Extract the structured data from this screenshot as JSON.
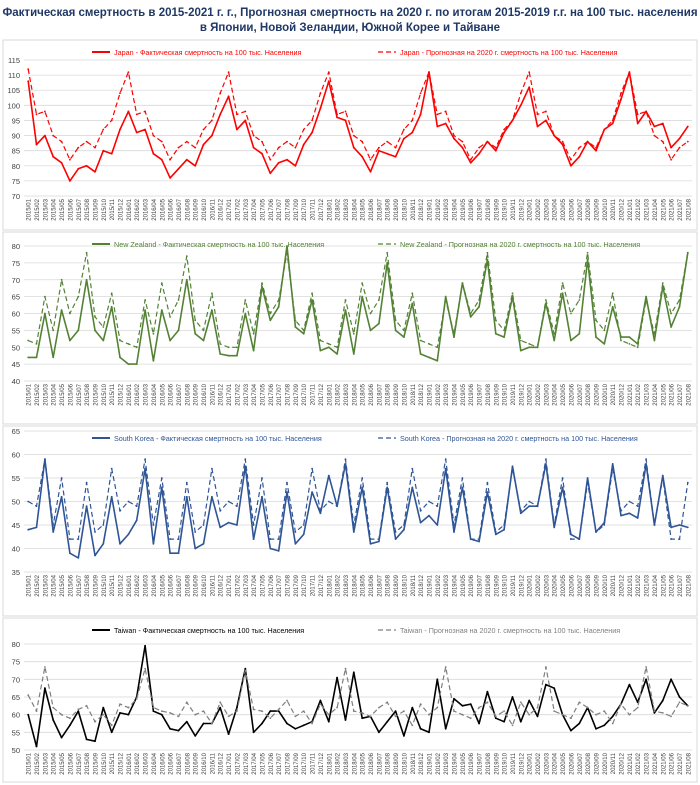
{
  "page": {
    "title_line1": "Фактическая смертность в 2015-2021 г. г., Прогнозная смертность на 2020 г. по итогам 2015-2019 г.г. на 100 тыс. населения",
    "title_line2": "в Японии, Новой Зеландии, Южной Корее и Тайване"
  },
  "chart_data": [
    {
      "type": "line",
      "country": "Japan",
      "color": "#ff0000",
      "ylim": [
        70,
        115
      ],
      "yticks": [
        70,
        75,
        80,
        85,
        90,
        95,
        100,
        105,
        110,
        115
      ],
      "x": [
        "2015/01",
        "2015/02",
        "2015/03",
        "2015/04",
        "2015/05",
        "2015/06",
        "2015/07",
        "2015/08",
        "2015/09",
        "2015/10",
        "2015/11",
        "2015/12",
        "2016/01",
        "2016/02",
        "2016/03",
        "2016/04",
        "2016/05",
        "2016/06",
        "2016/07",
        "2016/08",
        "2016/09",
        "2016/10",
        "2016/11",
        "2016/12",
        "2017/01",
        "2017/02",
        "2017/03",
        "2017/04",
        "2017/05",
        "2017/06",
        "2017/07",
        "2017/08",
        "2017/09",
        "2017/10",
        "2017/11",
        "2017/12",
        "2018/01",
        "2018/02",
        "2018/03",
        "2018/04",
        "2018/05",
        "2018/06",
        "2018/07",
        "2018/08",
        "2018/09",
        "2018/10",
        "2018/11",
        "2018/12",
        "2019/01",
        "2019/02",
        "2019/03",
        "2019/04",
        "2019/05",
        "2019/06",
        "2019/07",
        "2019/08",
        "2019/09",
        "2019/10",
        "2019/11",
        "2019/12",
        "2020/01",
        "2020/02",
        "2020/03",
        "2020/04",
        "2020/05",
        "2020/06",
        "2020/07",
        "2020/08",
        "2020/09",
        "2020/10",
        "2020/11",
        "2020/12",
        "2021/01",
        "2021/02",
        "2021/03",
        "2021/04",
        "2021/05",
        "2021/06",
        "2021/07",
        "2021/08"
      ],
      "series": [
        {
          "name": "Japan - Фактическая смертность на 100 тыс. Населения",
          "style": "solid",
          "values": [
            108,
            87,
            90,
            83,
            81,
            75,
            79,
            80,
            78,
            85,
            84,
            92,
            98,
            91,
            92,
            84,
            82,
            76,
            79,
            82,
            80,
            87,
            90,
            97,
            103,
            92,
            95,
            86,
            84,
            77.5,
            81,
            82,
            80,
            87,
            91,
            99,
            108,
            96,
            95,
            86,
            83,
            78,
            85,
            84,
            83,
            89,
            91,
            97,
            111,
            93,
            94,
            89,
            86,
            81,
            84,
            88,
            85,
            91,
            95,
            100,
            106,
            93,
            95,
            90,
            87,
            80,
            83,
            88,
            85,
            92,
            94,
            102,
            111,
            94,
            98,
            93,
            94,
            86,
            89,
            93
          ]
        },
        {
          "name": "Japan - Прогнозная на 2020 г. смертность на 100 тыс. Населения",
          "style": "dashed",
          "values": [
            112,
            97,
            98,
            90,
            88,
            82,
            86,
            88,
            86,
            92,
            95,
            104,
            111,
            97,
            98,
            90,
            88,
            82,
            86,
            88,
            86,
            92,
            95,
            104,
            111,
            97,
            98,
            90,
            88,
            82,
            86,
            88,
            86,
            92,
            95,
            104,
            111,
            97,
            98,
            90,
            88,
            82,
            86,
            88,
            86,
            92,
            95,
            104,
            111,
            97,
            98,
            90,
            88,
            82,
            86,
            88,
            86,
            92,
            95,
            104,
            111,
            97,
            98,
            90,
            88,
            82,
            86,
            88,
            86,
            92,
            95,
            104,
            111,
            97,
            98,
            90,
            88,
            82,
            86,
            88
          ]
        }
      ]
    },
    {
      "type": "line",
      "country": "New Zealand",
      "color": "#548235",
      "ylim": [
        40,
        80
      ],
      "yticks": [
        40,
        45,
        50,
        55,
        60,
        65,
        70,
        75,
        80
      ],
      "x": [
        "2015/01",
        "2015/02",
        "2015/03",
        "2015/04",
        "2015/05",
        "2015/06",
        "2015/07",
        "2015/08",
        "2015/09",
        "2015/10",
        "2015/11",
        "2015/12",
        "2016/01",
        "2016/02",
        "2016/03",
        "2016/04",
        "2016/05",
        "2016/06",
        "2016/07",
        "2016/08",
        "2016/09",
        "2016/10",
        "2016/11",
        "2016/12",
        "2017/01",
        "2017/02",
        "2017/03",
        "2017/04",
        "2017/05",
        "2017/06",
        "2017/07",
        "2017/08",
        "2017/09",
        "2017/10",
        "2017/11",
        "2017/12",
        "2018/01",
        "2018/02",
        "2018/03",
        "2018/04",
        "2018/05",
        "2018/06",
        "2018/07",
        "2018/08",
        "2018/09",
        "2018/10",
        "2018/11",
        "2018/12",
        "2019/01",
        "2019/02",
        "2019/03",
        "2019/04",
        "2019/05",
        "2019/06",
        "2019/07",
        "2019/08",
        "2019/09",
        "2019/10",
        "2019/11",
        "2019/12",
        "2020/01",
        "2020/02",
        "2020/03",
        "2020/04",
        "2020/05",
        "2020/06",
        "2020/07",
        "2020/08",
        "2020/09",
        "2020/10",
        "2020/11",
        "2020/12",
        "2021/01",
        "2021/02",
        "2021/03",
        "2021/04",
        "2021/05",
        "2021/06",
        "2021/07",
        "2021/08"
      ],
      "series": [
        {
          "name": "New Zealand - Фактическая смертность на 100 тыс. Населения",
          "style": "solid",
          "values": [
            47,
            47,
            60,
            47,
            61,
            52,
            55,
            70,
            55,
            52,
            62,
            47,
            45,
            45,
            61,
            46,
            61,
            52,
            55,
            70,
            54,
            52,
            61,
            48,
            47.5,
            47.5,
            60,
            49,
            68,
            58,
            62,
            80,
            56,
            54,
            64,
            49,
            50,
            48,
            61,
            48,
            65,
            55,
            57,
            75,
            55,
            53,
            63,
            48,
            47,
            46,
            65,
            53,
            69,
            59,
            62,
            76,
            54,
            53,
            65,
            49,
            50,
            50,
            63,
            52,
            66,
            52,
            54,
            76,
            53,
            51,
            62,
            53,
            53,
            51,
            65,
            52,
            68,
            56,
            62,
            78
          ]
        },
        {
          "name": "New Zealand - Прогнозная на 2020 г. смертность на 100 тыс. Населения",
          "style": "dashed",
          "values": [
            52,
            51,
            65,
            55,
            70,
            60,
            65,
            78,
            59,
            56,
            66,
            52,
            51,
            50,
            64,
            54,
            69,
            59,
            64,
            77,
            58,
            55,
            66,
            51,
            50,
            50,
            64,
            54,
            69,
            60,
            64,
            78,
            58,
            55,
            66,
            52,
            51,
            50,
            64,
            54,
            69,
            60,
            64,
            78,
            58,
            55,
            66,
            52,
            51,
            50,
            64,
            54,
            69,
            60,
            64,
            78,
            58,
            55,
            66,
            52,
            51,
            50,
            64,
            54,
            69,
            60,
            64,
            78,
            58,
            55,
            66,
            52,
            51,
            50,
            64,
            54,
            69,
            60,
            64,
            78
          ]
        }
      ]
    },
    {
      "type": "line",
      "country": "South Korea",
      "color": "#2f5597",
      "ylim": [
        35,
        65
      ],
      "yticks": [
        35,
        40,
        45,
        50,
        55,
        60,
        65
      ],
      "x": [
        "2015/01",
        "2015/02",
        "2015/03",
        "2015/04",
        "2015/05",
        "2015/06",
        "2015/07",
        "2015/08",
        "2015/09",
        "2015/10",
        "2015/11",
        "2015/12",
        "2016/01",
        "2016/02",
        "2016/03",
        "2016/04",
        "2016/05",
        "2016/06",
        "2016/07",
        "2016/08",
        "2016/09",
        "2016/10",
        "2016/11",
        "2016/12",
        "2017/01",
        "2017/02",
        "2017/03",
        "2017/04",
        "2017/05",
        "2017/06",
        "2017/07",
        "2017/08",
        "2017/09",
        "2017/10",
        "2017/11",
        "2017/12",
        "2018/01",
        "2018/02",
        "2018/03",
        "2018/04",
        "2018/05",
        "2018/06",
        "2018/07",
        "2018/08",
        "2018/09",
        "2018/10",
        "2018/11",
        "2018/12",
        "2019/01",
        "2019/02",
        "2019/03",
        "2019/04",
        "2019/05",
        "2019/06",
        "2019/07",
        "2019/08",
        "2019/09",
        "2019/10",
        "2019/11",
        "2019/12",
        "2020/01",
        "2020/02",
        "2020/03",
        "2020/04",
        "2020/05",
        "2020/06",
        "2020/07",
        "2020/08",
        "2020/09",
        "2020/10",
        "2020/11",
        "2020/12",
        "2021/01",
        "2021/02",
        "2021/03",
        "2021/04",
        "2021/05",
        "2021/06",
        "2021/07",
        "2021/08"
      ],
      "series": [
        {
          "name": "South Korea - Фактическая смертность на 100 тыс. Населения",
          "style": "solid",
          "values": [
            44,
            44.5,
            59,
            43.5,
            51,
            39,
            38,
            49,
            38.5,
            41,
            51,
            41,
            43,
            46,
            57,
            41,
            53,
            39,
            39,
            51,
            40,
            41,
            51,
            44.5,
            45.5,
            45,
            57.5,
            42,
            51,
            40,
            39.5,
            52,
            41,
            43,
            52,
            47.5,
            55.5,
            49,
            58,
            43.5,
            53,
            41,
            41.5,
            53,
            42,
            44,
            53,
            45.5,
            47,
            45,
            57,
            43.5,
            53,
            42,
            41.5,
            52,
            43,
            44,
            57.5,
            47.5,
            49,
            49,
            58,
            44.5,
            53,
            43,
            42,
            55,
            43.5,
            45.5,
            58,
            47,
            47.5,
            46.5,
            58,
            45,
            55.5,
            44.5,
            45,
            44.5
          ]
        },
        {
          "name": "South Korea - Прогнозная на 2020 г. смертность на 100 тыс. Населения",
          "style": "dashed",
          "values": [
            50,
            49,
            59,
            45,
            55,
            42,
            42,
            54,
            43.5,
            45,
            57,
            48,
            50,
            49,
            59,
            45,
            55,
            42,
            42,
            54,
            43.5,
            45,
            57,
            48,
            50,
            49,
            59,
            45,
            55,
            42,
            42,
            54,
            43.5,
            45,
            57,
            48,
            50,
            49,
            59,
            45,
            55,
            42,
            42,
            54,
            43.5,
            45,
            57,
            48,
            50,
            49,
            59,
            45,
            55,
            42,
            42,
            54,
            43.5,
            45,
            57,
            48,
            50,
            49,
            59,
            45,
            55,
            42,
            42,
            54,
            43.5,
            45,
            57,
            48,
            50,
            49,
            59,
            45,
            55,
            42,
            42,
            54
          ]
        }
      ]
    },
    {
      "type": "line",
      "country": "Taiwan",
      "color": "#000000",
      "predicted_color": "#7f7f7f",
      "ylim": [
        50,
        80
      ],
      "yticks": [
        50,
        55,
        60,
        65,
        70,
        75,
        80
      ],
      "x": [
        "2015/01",
        "2015/02",
        "2015/03",
        "2015/04",
        "2015/05",
        "2015/06",
        "2015/07",
        "2015/08",
        "2015/09",
        "2015/10",
        "2015/11",
        "2015/12",
        "2016/01",
        "2016/02",
        "2016/03",
        "2016/04",
        "2016/05",
        "2016/06",
        "2016/07",
        "2016/08",
        "2016/09",
        "2016/10",
        "2016/11",
        "2016/12",
        "2017/01",
        "2017/02",
        "2017/03",
        "2017/04",
        "2017/05",
        "2017/06",
        "2017/07",
        "2017/08",
        "2017/09",
        "2017/10",
        "2017/11",
        "2017/12",
        "2018/01",
        "2018/02",
        "2018/03",
        "2018/04",
        "2018/05",
        "2018/06",
        "2018/07",
        "2018/08",
        "2018/09",
        "2018/10",
        "2018/11",
        "2018/12",
        "2019/01",
        "2019/02",
        "2019/03",
        "2019/04",
        "2019/05",
        "2019/06",
        "2019/07",
        "2019/08",
        "2019/09",
        "2019/10",
        "2019/11",
        "2019/12",
        "2020/01",
        "2020/02",
        "2020/03",
        "2020/04",
        "2020/05",
        "2020/06",
        "2020/07",
        "2020/08",
        "2020/09",
        "2020/10",
        "2020/11",
        "2020/12",
        "2021/01",
        "2021/02",
        "2021/03",
        "2021/04",
        "2021/05",
        "2021/06",
        "2021/07",
        "2021/08"
      ],
      "series": [
        {
          "name": "Taiwan - Фактическая смертность на 100 тыс. Населения",
          "style": "solid",
          "values": [
            60,
            51,
            67.5,
            58.5,
            53.5,
            57,
            61,
            53,
            52.5,
            62,
            55,
            60.5,
            60,
            65,
            79.5,
            61,
            60,
            56,
            55.5,
            58,
            54,
            57.5,
            57.5,
            62,
            54.5,
            62,
            73,
            55,
            57.5,
            61,
            61,
            57.5,
            56,
            57,
            58,
            64,
            58,
            70.5,
            58.5,
            72,
            59,
            59.5,
            55,
            58,
            61,
            54,
            62,
            56,
            55,
            70,
            56,
            64.5,
            62.5,
            63,
            57.5,
            66.5,
            59,
            58,
            65,
            58,
            64,
            59.5,
            68.5,
            67.5,
            60,
            55.5,
            57.5,
            62,
            56,
            57,
            59.5,
            63,
            68.5,
            63.5,
            70,
            60.5,
            64,
            70,
            65,
            62.5
          ]
        },
        {
          "name": "Taiwan - Прогнозная на 2020 г. смертность на 100 тыс. Населения",
          "style": "dashed",
          "values": [
            65.5,
            61,
            73.5,
            62,
            60,
            59,
            61.5,
            62.5,
            58,
            60,
            57,
            63,
            62,
            64.5,
            73,
            62,
            61,
            60.5,
            59.5,
            63.5,
            60,
            61,
            57.5,
            63.5,
            59.5,
            61,
            72.5,
            61.5,
            61,
            59,
            61.5,
            64,
            59.5,
            61,
            57.5,
            63,
            60,
            62,
            73,
            61,
            60.5,
            59.5,
            62,
            63.5,
            59.5,
            61,
            57,
            63,
            60,
            62,
            73.5,
            61,
            60,
            59,
            62,
            63.5,
            59.5,
            61,
            57,
            63.5,
            60,
            62,
            73.5,
            61,
            60,
            59,
            63.5,
            62,
            60,
            61,
            57.5,
            63,
            60,
            62,
            73.5,
            61,
            60.5,
            59.5,
            63.5,
            62.5
          ]
        }
      ]
    }
  ]
}
